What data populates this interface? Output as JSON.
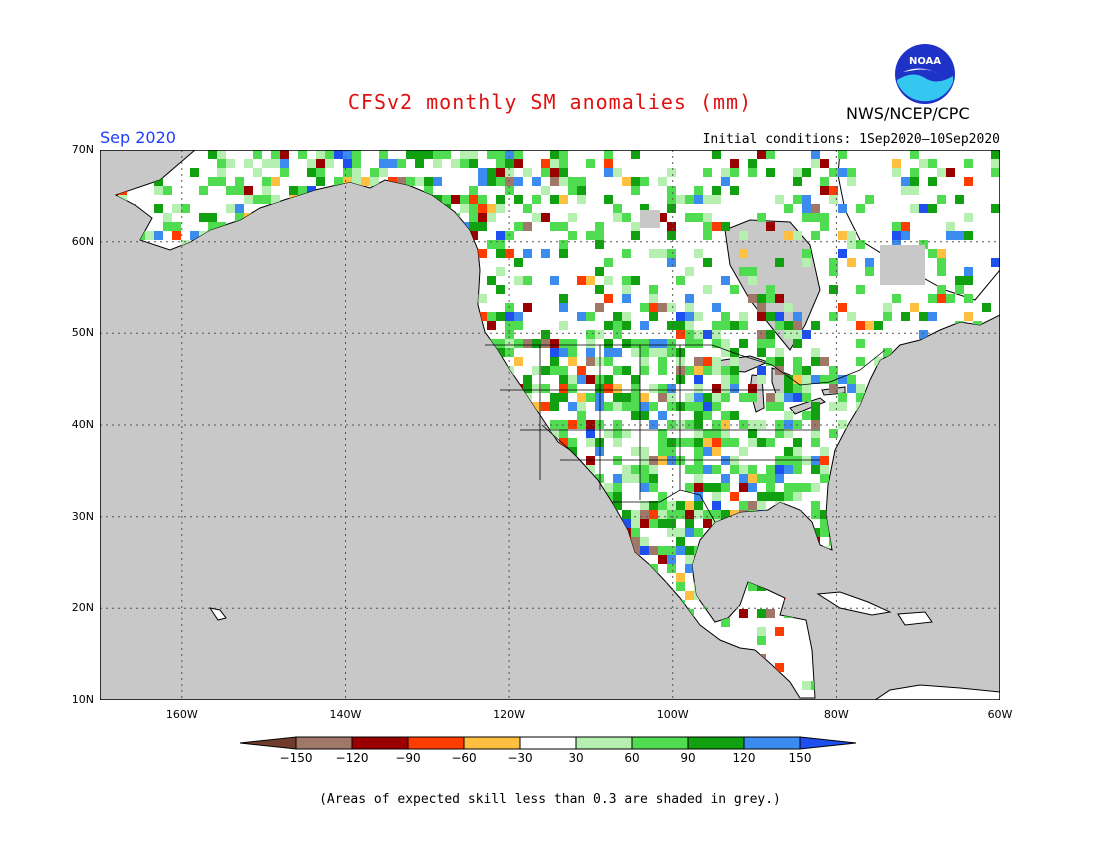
{
  "title": "CFSv2 monthly SM anomalies (mm)",
  "org": "NWS/NCEP/CPC",
  "logo_text": "NOAA",
  "month": "Sep 2020",
  "init": "Initial conditions: 1Sep2020–10Sep2020",
  "footer": "(Areas of expected skill less than 0.3 are shaded in grey.)",
  "axes": {
    "lat_labels": [
      "70N",
      "60N",
      "50N",
      "40N",
      "30N",
      "20N",
      "10N"
    ],
    "lon_labels": [
      "160W",
      "140W",
      "120W",
      "100W",
      "80W",
      "60W"
    ],
    "lat_range": [
      10,
      70
    ],
    "lon_range": [
      -170,
      -60
    ]
  },
  "colorbar": {
    "labels": [
      "−150",
      "−120",
      "−90",
      "−60",
      "−30",
      "30",
      "60",
      "90",
      "120",
      "150"
    ],
    "colors": [
      "#6e3b2c",
      "#a07868",
      "#9a0000",
      "#ff3c00",
      "#ffbf40",
      "#ffffff",
      "#b5f0b0",
      "#50dc50",
      "#10a010",
      "#3c8cf0",
      "#1e50f0"
    ]
  },
  "colors": {
    "ocean_grey": "#c8c8c8",
    "title_red": "#e01010",
    "month_blue": "#1e3cff"
  }
}
